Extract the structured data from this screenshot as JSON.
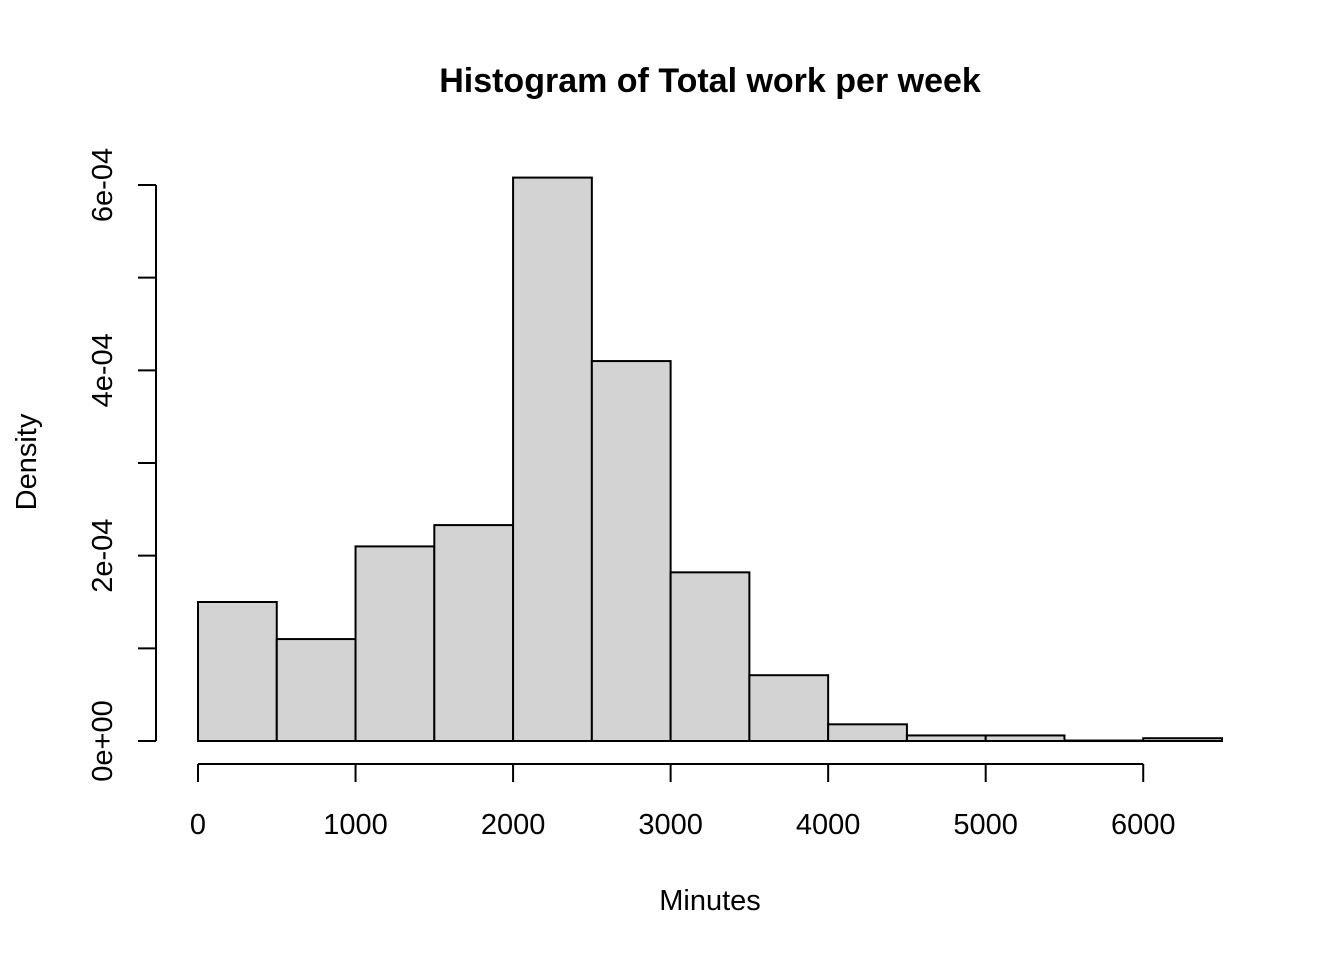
{
  "chart_data": {
    "type": "bar",
    "title": "Histogram of Total work per week",
    "xlabel": "Minutes",
    "ylabel": "Density",
    "xlim": [
      0,
      6500
    ],
    "ylim": [
      0,
      0.0006
    ],
    "x_ticks": [
      0,
      1000,
      2000,
      3000,
      4000,
      5000,
      6000
    ],
    "x_tick_labels": [
      "0",
      "1000",
      "2000",
      "3000",
      "4000",
      "5000",
      "6000"
    ],
    "y_ticks": [
      0,
      0.0001,
      0.0002,
      0.0003,
      0.0004,
      0.0005,
      0.0006
    ],
    "y_tick_labels": [
      "0e+00",
      "",
      "2e-04",
      "",
      "4e-04",
      "",
      "6e-04"
    ],
    "bin_edges": [
      0,
      500,
      1000,
      1500,
      2000,
      2500,
      3000,
      3500,
      4000,
      4500,
      5000,
      5500,
      6000,
      6500
    ],
    "values": [
      0.00015,
      0.00011,
      0.00021,
      0.000233,
      0.000608,
      0.00041,
      0.000182,
      7.1e-05,
      1.8e-05,
      6e-06,
      6e-06,
      5e-07,
      3e-06
    ],
    "grid": false,
    "colors": {
      "fill": "#d3d3d3",
      "stroke": "#000000"
    }
  }
}
